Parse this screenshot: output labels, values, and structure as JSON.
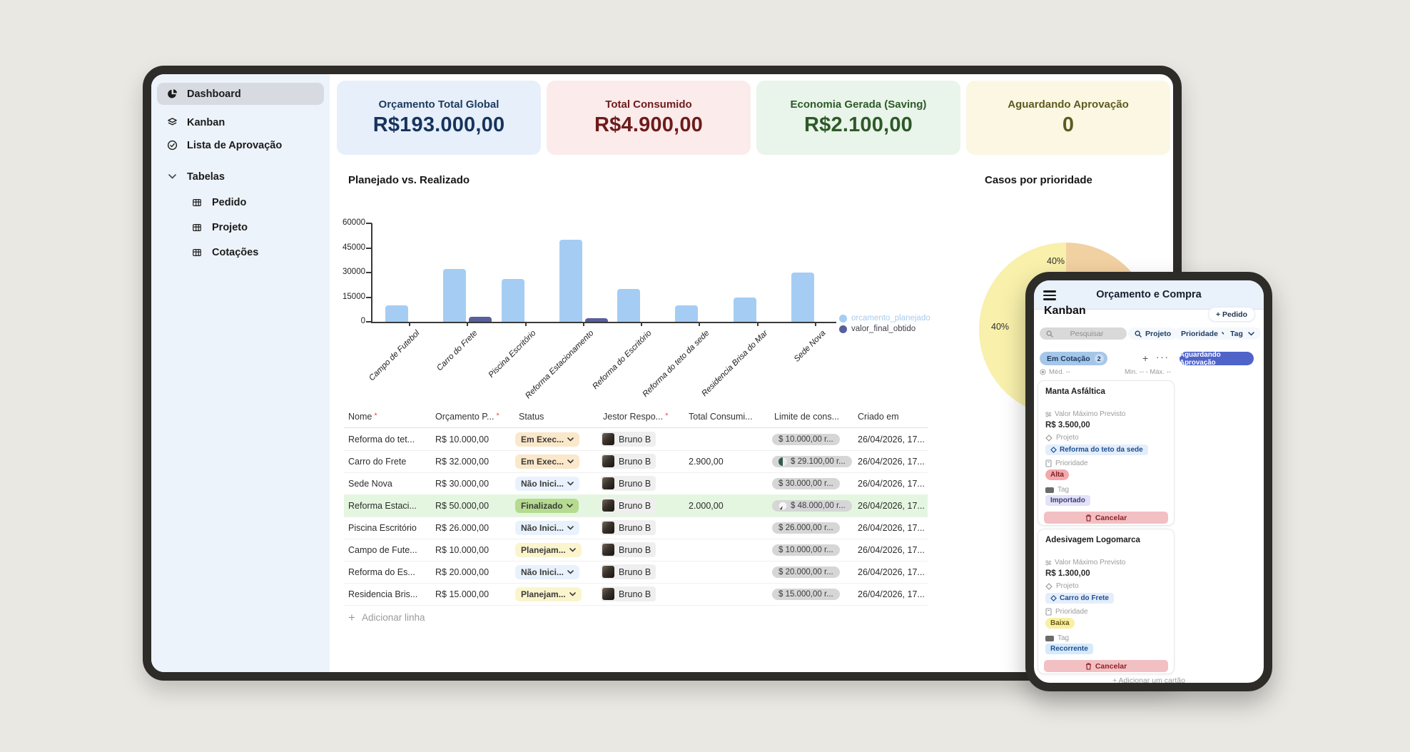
{
  "app": {
    "stats": [
      {
        "title": "Orçamento Total Global",
        "value": "R$193.000,00",
        "bg": "#e7effa",
        "fg": "#16345c"
      },
      {
        "title": "Total Consumido",
        "value": "R$4.900,00",
        "bg": "#fbebea",
        "fg": "#6d1b1b"
      },
      {
        "title": "Economia Gerada (Saving)",
        "value": "R$2.100,00",
        "bg": "#e9f4ea",
        "fg": "#2d5a28"
      },
      {
        "title": "Aguardando Aprovação",
        "value": "0",
        "bg": "#fbf7e2",
        "fg": "#5e5a20"
      }
    ]
  },
  "sidebar": {
    "items": [
      {
        "label": "Dashboard",
        "icon": "pie-chart-icon",
        "active": true
      },
      {
        "label": "Kanban",
        "icon": "layers-icon"
      },
      {
        "label": "Lista de Aprovação",
        "icon": "check-circle-icon"
      },
      {
        "label": "Tabelas",
        "icon": "chevron-down-icon"
      },
      {
        "label": "Pedido",
        "icon": "table-icon"
      },
      {
        "label": "Projeto",
        "icon": "table-icon"
      },
      {
        "label": "Cotações",
        "icon": "table-icon"
      }
    ]
  },
  "chart_data": [
    {
      "type": "bar",
      "title": "Planejado vs. Realizado",
      "categories": [
        "Campo de Futebol",
        "Carro do Frete",
        "Piscina Escritório",
        "Reforma Estacionamento",
        "Reforma do Escritório",
        "Reforma do teto da sede",
        "Residencia Brisa do Mar",
        "Sede Nova"
      ],
      "series": [
        {
          "name": "orcamento_planejado",
          "color": "#a5cdf3",
          "label_color": "#a9cbec",
          "values": [
            10000,
            32000,
            26000,
            50000,
            20000,
            10000,
            15000,
            30000
          ]
        },
        {
          "name": "valor_final_obtido",
          "color": "#585f9b",
          "label_color": "#3f3f4a",
          "values": [
            0,
            2900,
            0,
            2000,
            0,
            0,
            0,
            0
          ]
        }
      ],
      "xlabel": "",
      "ylabel": "",
      "ylim": [
        0,
        60000
      ],
      "yticks": [
        0,
        15000,
        30000,
        45000,
        60000
      ],
      "grid": false,
      "legend_position": "right"
    },
    {
      "type": "pie",
      "title": "Casos por prioridade",
      "slices": [
        {
          "label": "40%",
          "value": 40,
          "color": "#f1d0a1"
        },
        {
          "label": "",
          "value": 20,
          "color": "#e6d6bd"
        },
        {
          "label": "40%",
          "value": 40,
          "color": "#f8f0ab"
        }
      ],
      "start_angle_deg": -60,
      "note": "partially hidden behind phone overlay"
    }
  ],
  "table": {
    "headers": [
      {
        "label": "Nome",
        "required": true
      },
      {
        "label": "Orçamento P...",
        "required": true
      },
      {
        "label": "Status",
        "required": false
      },
      {
        "label": "Jestor Respo...",
        "required": true
      },
      {
        "label": "Total Consumi...",
        "required": false
      },
      {
        "label": "Limite de cons...",
        "required": false
      },
      {
        "label": "Criado em",
        "required": false
      }
    ],
    "rows": [
      {
        "name": "Reforma do tet...",
        "budget": "R$ 10.000,00",
        "status": "Em Exec...",
        "status_type": "exec",
        "owner": "Bruno B",
        "total": "",
        "limit": "$ 10.000,00 r...",
        "created": "26/04/2026, 17...",
        "limit_progress": "none",
        "highlight": false
      },
      {
        "name": "Carro do Frete",
        "budget": "R$ 32.000,00",
        "status": "Em Exec...",
        "status_type": "exec",
        "owner": "Bruno B",
        "total": "2.900,00",
        "limit": "$ 29.100,00 r...",
        "created": "26/04/2026, 17...",
        "limit_progress": "half",
        "highlight": false
      },
      {
        "name": "Sede Nova",
        "budget": "R$ 30.000,00",
        "status": "Não Inici...",
        "status_type": "nao",
        "owner": "Bruno B",
        "total": "",
        "limit": "$ 30.000,00 r...",
        "created": "26/04/2026, 17...",
        "limit_progress": "none",
        "highlight": false
      },
      {
        "name": "Reforma Estaci...",
        "budget": "R$ 50.000,00",
        "status": "Finalizado",
        "status_type": "fin",
        "owner": "Bruno B",
        "total": "2.000,00",
        "limit": "$ 48.000,00 r...",
        "created": "26/04/2026, 17...",
        "limit_progress": "sliver",
        "highlight": true
      },
      {
        "name": "Piscina Escritório",
        "budget": "R$ 26.000,00",
        "status": "Não Inici...",
        "status_type": "nao",
        "owner": "Bruno B",
        "total": "",
        "limit": "$ 26.000,00 r...",
        "created": "26/04/2026, 17...",
        "limit_progress": "none",
        "highlight": false
      },
      {
        "name": "Campo de Fute...",
        "budget": "R$ 10.000,00",
        "status": "Planejam...",
        "status_type": "plan",
        "owner": "Bruno B",
        "total": "",
        "limit": "$ 10.000,00 r...",
        "created": "26/04/2026, 17...",
        "limit_progress": "none",
        "highlight": false
      },
      {
        "name": "Reforma do Es...",
        "budget": "R$ 20.000,00",
        "status": "Não Inici...",
        "status_type": "nao",
        "owner": "Bruno B",
        "total": "",
        "limit": "$ 20.000,00 r...",
        "created": "26/04/2026, 17...",
        "limit_progress": "none",
        "highlight": false
      },
      {
        "name": "Residencia Bris...",
        "budget": "R$ 15.000,00",
        "status": "Planejam...",
        "status_type": "plan",
        "owner": "Bruno B",
        "total": "",
        "limit": "$ 15.000,00 r...",
        "created": "26/04/2026, 17...",
        "limit_progress": "none",
        "highlight": false
      }
    ],
    "add_row_label": "Adicionar linha"
  },
  "phone": {
    "header_title": "Orçamento e Compra",
    "page_title": "Kanban",
    "new_button_label": "+ Pedido",
    "search_placeholder": "Pesquisar",
    "filters": [
      {
        "label": "Projeto",
        "icon": "search-icon"
      },
      {
        "label": "Prioridade",
        "icon": "chevron-down-icon"
      },
      {
        "label": "Tag",
        "icon": "chevron-down-icon"
      }
    ],
    "column_1": {
      "name": "Em Cotação",
      "count": "2"
    },
    "column_2": {
      "name": "Aguardando Aprovação"
    },
    "stats_left": "Méd. --",
    "stats_right": "Min. -- - Máx. --",
    "cards": [
      {
        "title": "Manta Asfáltica",
        "value_label": "Valor Máximo Previsto",
        "value": "R$ 3.500,00",
        "project_label": "Projeto",
        "project": "Reforma do teto da sede",
        "priority_label": "Prioridade",
        "priority": "Alta",
        "tag_label": "Tag",
        "tag": "Importado",
        "cancel_label": "Cancelar"
      },
      {
        "title": "Adesivagem Logomarca",
        "value_label": "Valor Máximo Previsto",
        "value": "R$ 1.300,00",
        "project_label": "Projeto",
        "project": "Carro do Frete",
        "priority_label": "Prioridade",
        "priority": "Baixa",
        "tag_label": "Tag",
        "tag": "Recorrente",
        "cancel_label": "Cancelar"
      }
    ],
    "add_card_label": "+ Adicionar um cartão"
  }
}
